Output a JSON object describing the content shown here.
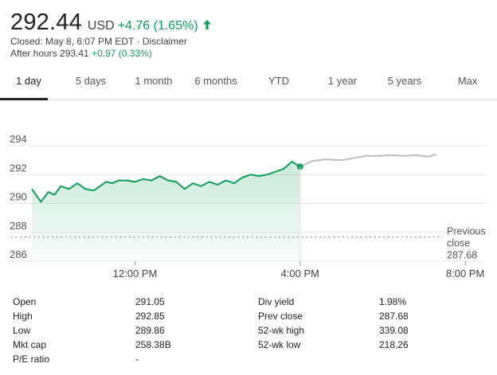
{
  "quote": {
    "price": "292.44",
    "currency": "USD",
    "change": "+4.76 (1.65%)",
    "closed_text": "Closed: May 8, 6:07 PM EDT · Disclaimer",
    "after_hours_label": "After hours 293.41",
    "after_hours_change": "+0.97 (0.33%)",
    "up_color": "#0f9d58"
  },
  "tabs": [
    {
      "label": "1 day",
      "active": true
    },
    {
      "label": "5 days",
      "active": false
    },
    {
      "label": "1 month",
      "active": false
    },
    {
      "label": "6 months",
      "active": false
    },
    {
      "label": "YTD",
      "active": false
    },
    {
      "label": "1 year",
      "active": false
    },
    {
      "label": "5 years",
      "active": false
    },
    {
      "label": "Max",
      "active": false
    }
  ],
  "chart_data": {
    "type": "line",
    "title": "",
    "xlabel": "",
    "ylabel": "",
    "ylim": [
      286,
      295
    ],
    "y_ticks": [
      "294",
      "292",
      "290",
      "288",
      "286"
    ],
    "x_ticks": [
      "12:00 PM",
      "4:00 PM",
      "8:00 PM"
    ],
    "x_tick_hours": [
      12,
      16,
      20
    ],
    "xlim_hours": [
      9.5,
      20.5
    ],
    "grid": true,
    "previous_close": 287.68,
    "previous_close_label_1": "Previous",
    "previous_close_label_2": "close",
    "previous_close_value": "287.68",
    "line_color": "#0f9d58",
    "after_hours_color": "#bdbdbd",
    "series": [
      {
        "x_hours": [
          9.5,
          9.72,
          9.9,
          10.05,
          10.2,
          10.4,
          10.6,
          10.8,
          11.0,
          11.15,
          11.3,
          11.45,
          11.6,
          11.8,
          12.0,
          12.2,
          12.4,
          12.6,
          12.8,
          13.0,
          13.2,
          13.4,
          13.6,
          13.8,
          14.0,
          14.2,
          14.4,
          14.6,
          14.8,
          15.0,
          15.2,
          15.4,
          15.6,
          15.8,
          16.0
        ],
        "values": [
          291.0,
          290.1,
          290.8,
          290.6,
          291.2,
          291.0,
          291.4,
          291.0,
          290.9,
          291.2,
          291.5,
          291.4,
          291.6,
          291.6,
          291.5,
          291.7,
          291.6,
          291.9,
          291.6,
          291.5,
          291.0,
          291.4,
          291.2,
          291.5,
          291.3,
          291.6,
          291.4,
          291.8,
          292.0,
          291.9,
          292.0,
          292.2,
          292.4,
          292.9,
          292.55
        ]
      },
      {
        "x_hours": [
          16.0,
          16.3,
          16.6,
          17.0,
          17.3,
          17.6,
          17.9,
          18.2,
          18.5,
          18.8,
          19.1,
          19.3
        ],
        "values": [
          292.55,
          292.95,
          293.05,
          293.0,
          293.15,
          293.3,
          293.3,
          293.35,
          293.3,
          293.35,
          293.25,
          293.41
        ]
      }
    ]
  },
  "stats": {
    "left": [
      {
        "label": "Open",
        "value": "291.05"
      },
      {
        "label": "High",
        "value": "292.85"
      },
      {
        "label": "Low",
        "value": "289.86"
      },
      {
        "label": "Mkt cap",
        "value": "258.38B"
      },
      {
        "label": "P/E ratio",
        "value": "-"
      }
    ],
    "right": [
      {
        "label": "Div yield",
        "value": "1.98%"
      },
      {
        "label": "Prev close",
        "value": "287.68"
      },
      {
        "label": "52-wk high",
        "value": "339.08"
      },
      {
        "label": "52-wk low",
        "value": "218.26"
      }
    ]
  }
}
